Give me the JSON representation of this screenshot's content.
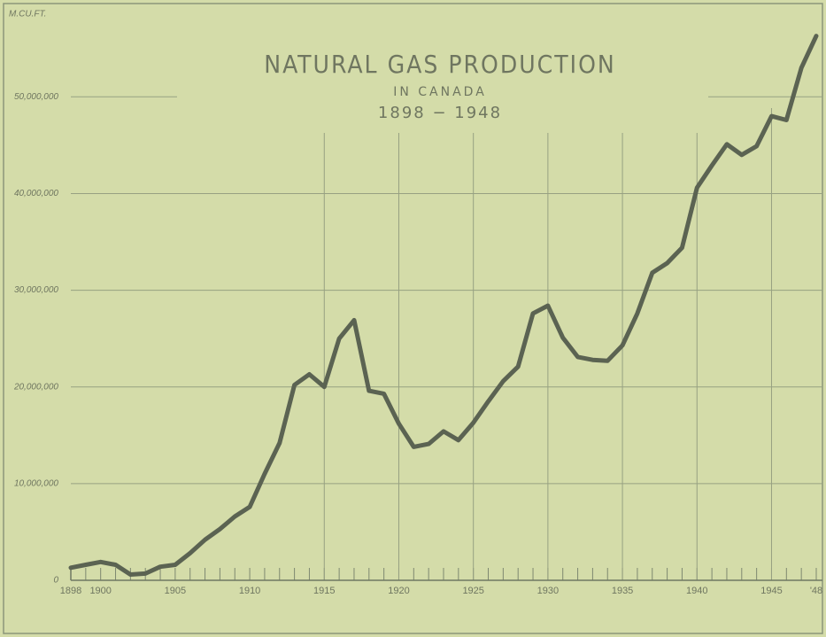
{
  "chart_data": {
    "type": "line",
    "title": "NATURAL GAS PRODUCTION",
    "subtitle": "IN CANADA",
    "period": "1898 − 1948",
    "y_label": "M.CU.FT.",
    "x": [
      1898,
      1899,
      1900,
      1901,
      1902,
      1903,
      1904,
      1905,
      1906,
      1907,
      1908,
      1909,
      1910,
      1911,
      1912,
      1913,
      1914,
      1915,
      1916,
      1917,
      1918,
      1919,
      1920,
      1921,
      1922,
      1923,
      1924,
      1925,
      1926,
      1927,
      1928,
      1929,
      1930,
      1931,
      1932,
      1933,
      1934,
      1935,
      1936,
      1937,
      1938,
      1939,
      1940,
      1941,
      1942,
      1943,
      1944,
      1945,
      1946,
      1947,
      1948
    ],
    "series": [
      {
        "name": "Natural gas production",
        "color": "#5b6352",
        "values": [
          1300000,
          1600000,
          1900000,
          1600000,
          600000,
          700000,
          1400000,
          1600000,
          2800000,
          4200000,
          5300000,
          6600000,
          7600000,
          11000000,
          14200000,
          20200000,
          21300000,
          20000000,
          25000000,
          26900000,
          19600000,
          19300000,
          16200000,
          13800000,
          14100000,
          15400000,
          14500000,
          16300000,
          18500000,
          20600000,
          22100000,
          27600000,
          28400000,
          25100000,
          23100000,
          22800000,
          22700000,
          24300000,
          27600000,
          31800000,
          32800000,
          34400000,
          40600000,
          42900000,
          45100000,
          44000000,
          44900000,
          48000000,
          47600000,
          53000000,
          56300000
        ]
      }
    ],
    "xlim": [
      1898,
      1948
    ],
    "xticks": [
      1898,
      1900,
      1905,
      1910,
      1915,
      1920,
      1925,
      1930,
      1935,
      1940,
      1945,
      {
        "value": 1948,
        "label": "'48"
      }
    ],
    "ylim": [
      0,
      58000000
    ],
    "yticks": [
      0,
      {
        "value": 10000000,
        "label": "10,000,000"
      },
      {
        "value": 20000000,
        "label": "20,000,000"
      },
      {
        "value": 30000000,
        "label": "30,000,000"
      },
      {
        "value": 40000000,
        "label": "40,000,000"
      },
      {
        "value": 50000000,
        "label": "50,000,000"
      }
    ],
    "grid": true
  }
}
